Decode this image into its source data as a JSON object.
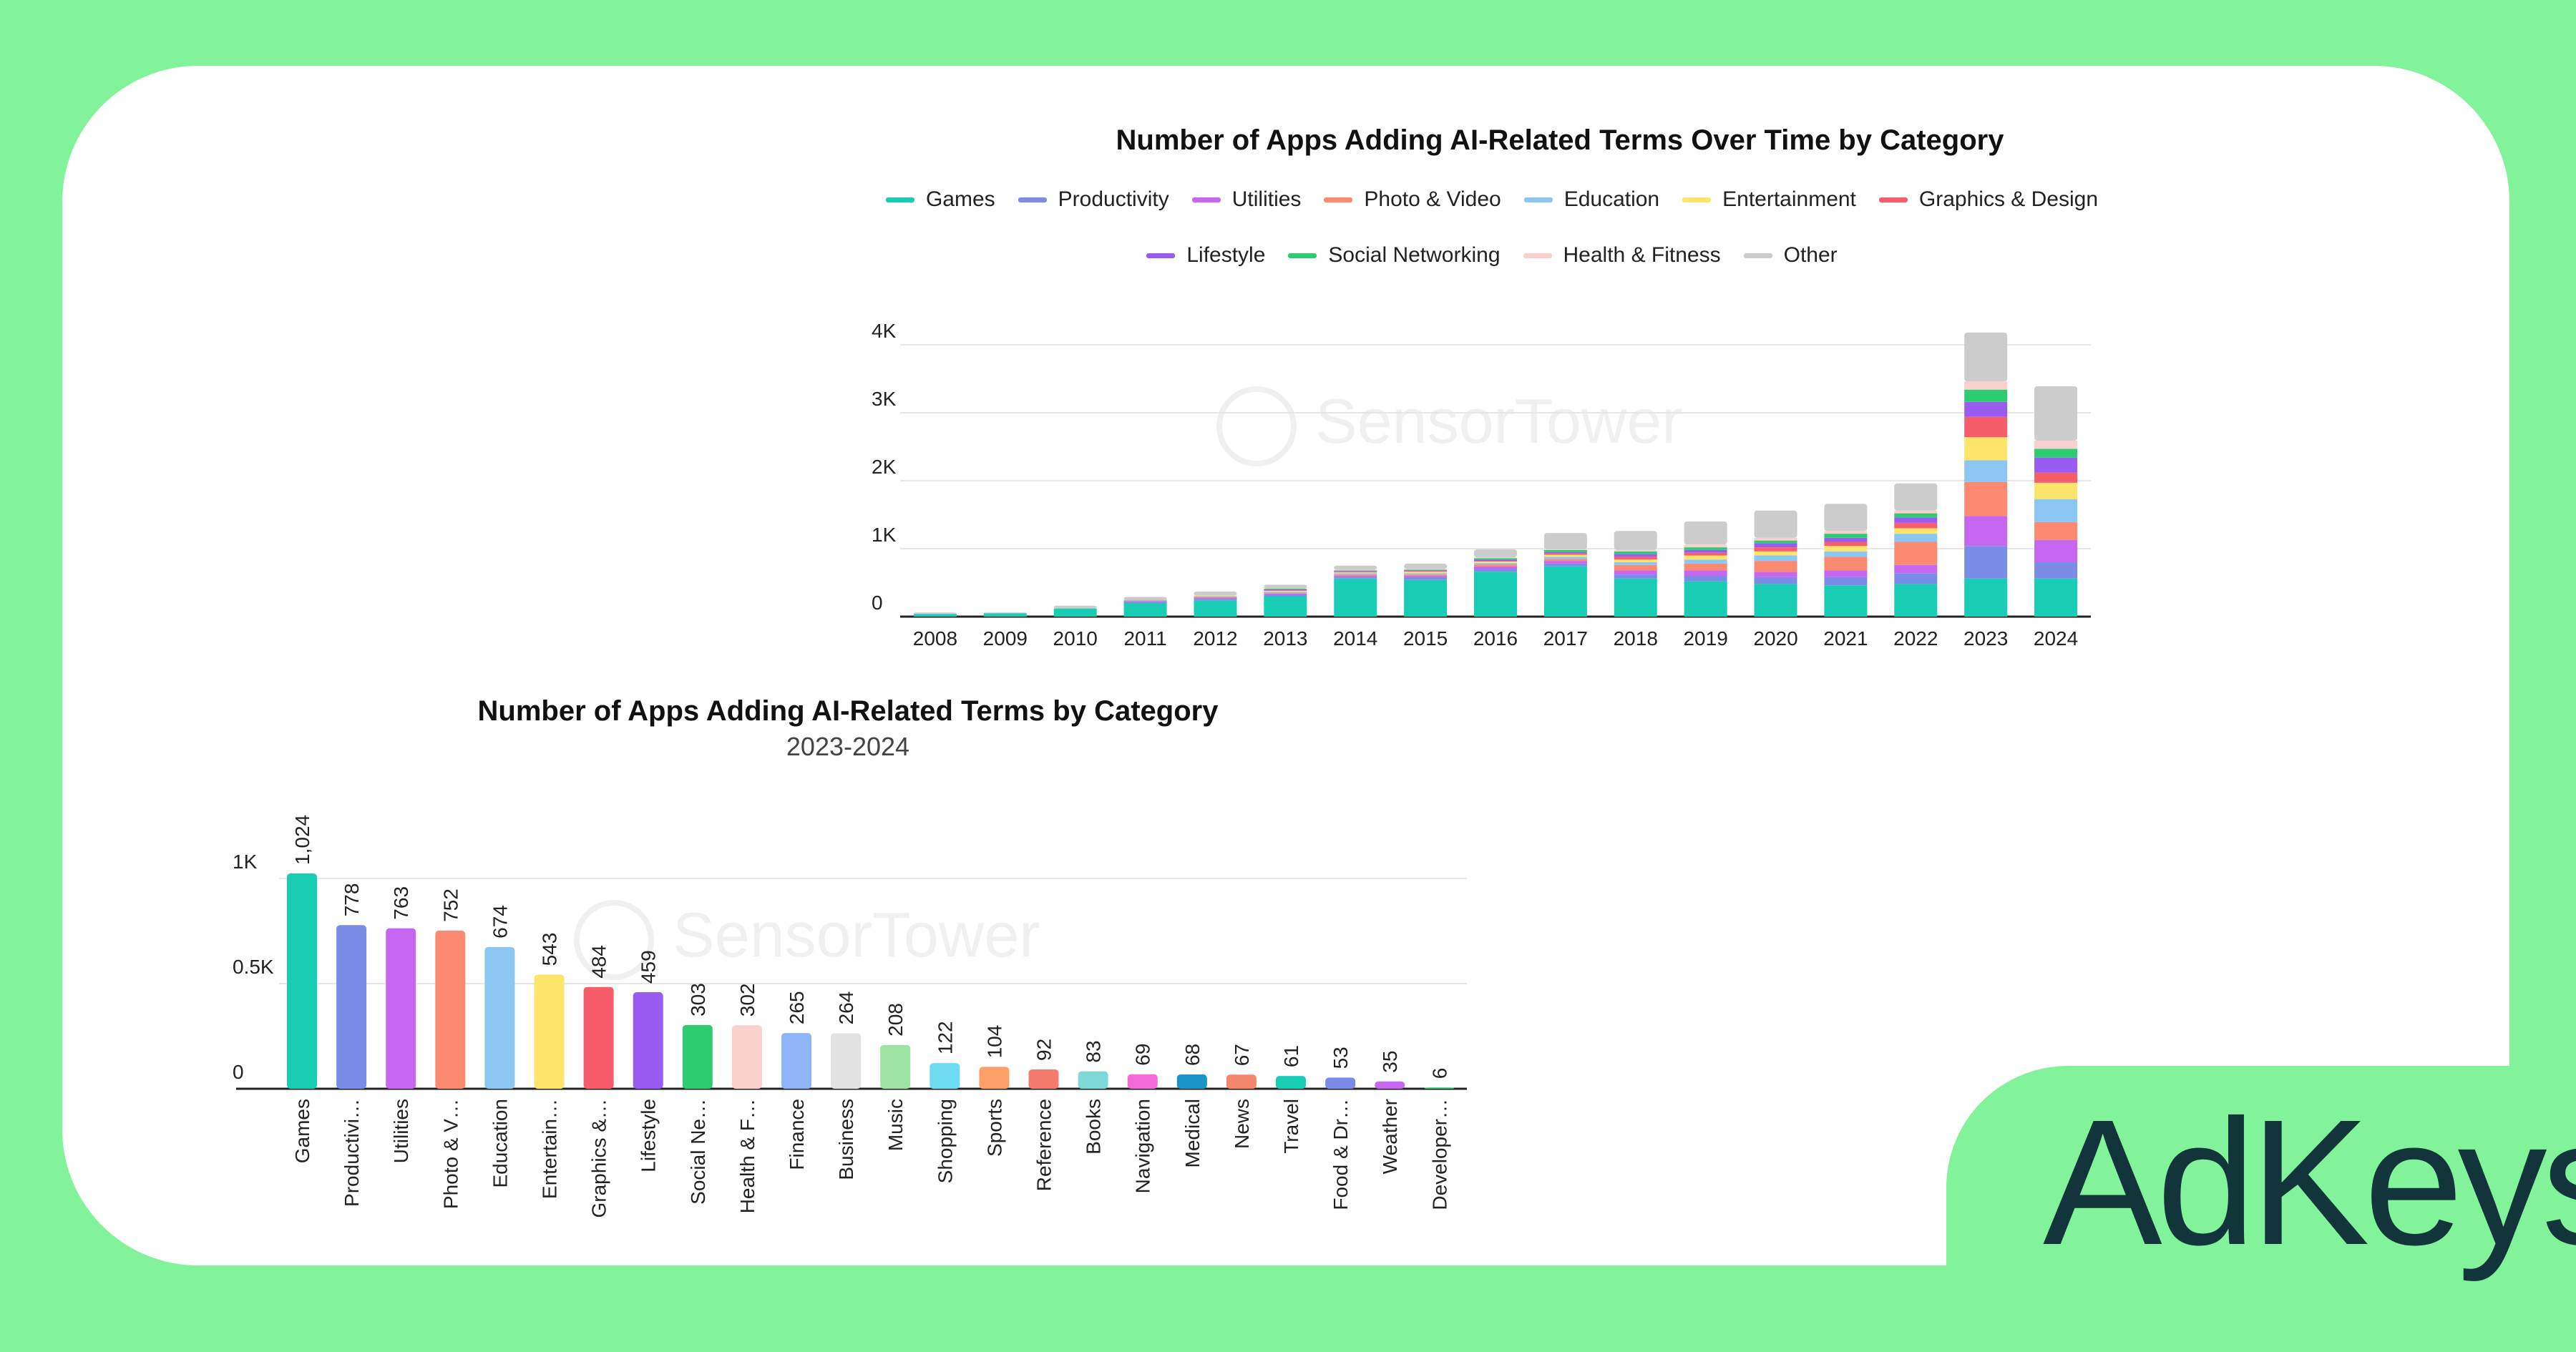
{
  "brand": {
    "name": "AdKeys"
  },
  "colors": {
    "background": "#82f39a",
    "card": "#ffffff",
    "brand_text": "#12343b"
  },
  "watermark": {
    "text": "SensorTower"
  },
  "chart_data": [
    {
      "type": "bar",
      "stacked": true,
      "title": "Number of Apps Adding AI-Related Terms Over Time by Category",
      "xlabel": "",
      "ylabel": "",
      "ylim": [
        0,
        4000
      ],
      "y_ticks": [
        0,
        1000,
        2000,
        3000,
        4000
      ],
      "y_tick_labels": [
        "0",
        "1K",
        "2K",
        "3K",
        "4K"
      ],
      "grid": true,
      "legend_position": "top",
      "categories": [
        "2008",
        "2009",
        "2010",
        "2011",
        "2012",
        "2013",
        "2014",
        "2015",
        "2016",
        "2017",
        "2018",
        "2019",
        "2020",
        "2021",
        "2022",
        "2023",
        "2024"
      ],
      "series": [
        {
          "name": "Games",
          "color": "#19cdb4",
          "values": [
            40,
            50,
            120,
            200,
            240,
            300,
            560,
            540,
            660,
            740,
            560,
            520,
            480,
            460,
            480,
            560,
            560
          ]
        },
        {
          "name": "Productivity",
          "color": "#7b8ce6",
          "values": [
            0,
            0,
            0,
            20,
            20,
            20,
            20,
            40,
            40,
            40,
            60,
            80,
            100,
            120,
            160,
            480,
            240
          ]
        },
        {
          "name": "Utilities",
          "color": "#c766f0",
          "values": [
            0,
            0,
            0,
            10,
            20,
            20,
            20,
            20,
            40,
            40,
            60,
            80,
            80,
            100,
            120,
            440,
            330
          ]
        },
        {
          "name": "Photo & Video",
          "color": "#fc8a70",
          "values": [
            0,
            0,
            0,
            10,
            10,
            10,
            20,
            20,
            30,
            30,
            80,
            100,
            160,
            200,
            340,
            500,
            260
          ]
        },
        {
          "name": "Education",
          "color": "#8cc6f2",
          "values": [
            0,
            0,
            0,
            10,
            10,
            20,
            20,
            20,
            20,
            30,
            40,
            60,
            80,
            80,
            120,
            320,
            340
          ]
        },
        {
          "name": "Entertainment",
          "color": "#ffe46b",
          "values": [
            0,
            0,
            0,
            0,
            10,
            10,
            10,
            20,
            20,
            30,
            40,
            60,
            60,
            80,
            80,
            340,
            240
          ]
        },
        {
          "name": "Graphics & Design",
          "color": "#f75d6a",
          "values": [
            0,
            0,
            0,
            0,
            0,
            10,
            10,
            10,
            10,
            20,
            40,
            40,
            60,
            60,
            80,
            300,
            150
          ]
        },
        {
          "name": "Lifestyle",
          "color": "#9a5cf0",
          "values": [
            0,
            0,
            0,
            0,
            0,
            10,
            10,
            10,
            20,
            20,
            40,
            40,
            60,
            60,
            80,
            220,
            220
          ]
        },
        {
          "name": "Social Networking",
          "color": "#2ecc71",
          "values": [
            0,
            0,
            0,
            0,
            0,
            10,
            10,
            10,
            20,
            30,
            40,
            40,
            40,
            60,
            60,
            180,
            130
          ]
        },
        {
          "name": "Health & Fitness",
          "color": "#f9d0cc",
          "values": [
            0,
            0,
            0,
            0,
            0,
            0,
            10,
            10,
            10,
            10,
            20,
            40,
            40,
            40,
            40,
            120,
            120
          ]
        },
        {
          "name": "Other",
          "color": "#cccccc",
          "values": [
            20,
            10,
            40,
            40,
            60,
            60,
            60,
            80,
            120,
            240,
            280,
            340,
            400,
            400,
            400,
            720,
            800
          ]
        }
      ]
    },
    {
      "type": "bar",
      "title": "Number of Apps Adding AI-Related Terms by Category",
      "subtitle": "2023-2024",
      "xlabel": "",
      "ylabel": "",
      "ylim": [
        0,
        1100
      ],
      "y_ticks": [
        0,
        500,
        1000
      ],
      "y_tick_labels": [
        "0",
        "0.5K",
        "1K"
      ],
      "grid": true,
      "categories": [
        "Games",
        "Productivi…",
        "Utilities",
        "Photo & V…",
        "Education",
        "Entertain…",
        "Graphics &…",
        "Lifestyle",
        "Social Ne…",
        "Health & F…",
        "Finance",
        "Business",
        "Music",
        "Shopping",
        "Sports",
        "Reference",
        "Books",
        "Navigation",
        "Medical",
        "News",
        "Travel",
        "Food & Dr…",
        "Weather",
        "Developer…"
      ],
      "values": [
        1024,
        778,
        763,
        752,
        674,
        543,
        484,
        459,
        303,
        302,
        265,
        264,
        208,
        122,
        104,
        92,
        83,
        69,
        68,
        67,
        61,
        53,
        35,
        6
      ],
      "value_labels": [
        "1,024",
        "778",
        "763",
        "752",
        "674",
        "543",
        "484",
        "459",
        "303",
        "302",
        "265",
        "264",
        "208",
        "122",
        "104",
        "92",
        "83",
        "69",
        "68",
        "67",
        "61",
        "53",
        "35",
        "6"
      ],
      "colors": [
        "#19cdb4",
        "#7b8ce6",
        "#c766f0",
        "#fc8a70",
        "#8cc6f2",
        "#ffe46b",
        "#f75d6a",
        "#9a5cf0",
        "#2ecc71",
        "#f9d0cc",
        "#8fb4f7",
        "#e2e2e2",
        "#9ee2a6",
        "#6edcf2",
        "#fca06a",
        "#f57b6e",
        "#7fd8d8",
        "#f06ad8",
        "#1993c8",
        "#f5866e",
        "#19cdb4",
        "#7b8ce6",
        "#c766f0",
        "#2ecc71"
      ]
    }
  ]
}
